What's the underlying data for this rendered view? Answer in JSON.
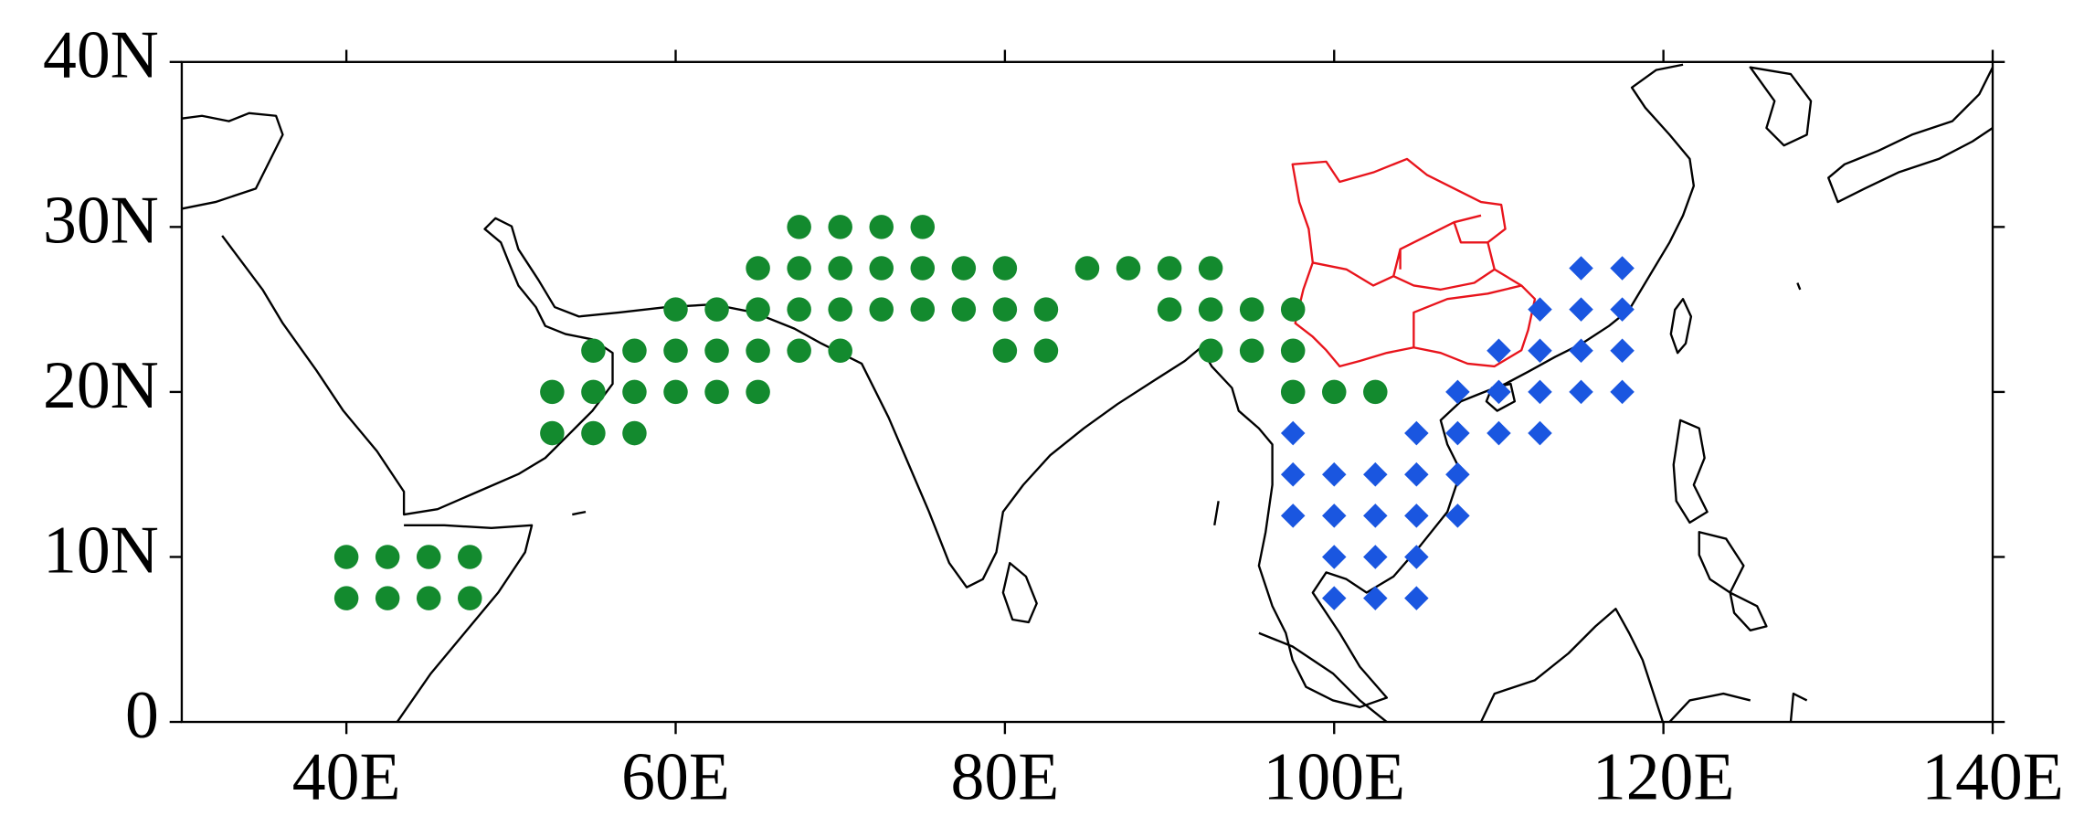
{
  "chart_data": {
    "type": "scatter",
    "xlim": [
      30,
      140
    ],
    "ylim": [
      0,
      40
    ],
    "xticks": [
      {
        "value": 40,
        "label": "40E"
      },
      {
        "value": 60,
        "label": "60E"
      },
      {
        "value": 80,
        "label": "80E"
      },
      {
        "value": 100,
        "label": "100E"
      },
      {
        "value": 120,
        "label": "120E"
      },
      {
        "value": 140,
        "label": "140E"
      }
    ],
    "yticks": [
      0,
      {
        "value": 10,
        "label": "10N"
      },
      {
        "value": 20,
        "label": "20N"
      },
      {
        "value": 30,
        "label": "30N"
      },
      {
        "value": 40,
        "label": "40N"
      }
    ],
    "series": [
      {
        "color": "#138a2e",
        "marker": "circle",
        "x": [
          67.5,
          70,
          72.5,
          75,
          65,
          67.5,
          70,
          72.5,
          75,
          77.5,
          80,
          85,
          87.5,
          90,
          92.5,
          60,
          62.5,
          65,
          67.5,
          70,
          72.5,
          75,
          77.5,
          80,
          82.5,
          90,
          92.5,
          95,
          97.5,
          55,
          57.5,
          60,
          62.5,
          65,
          67.5,
          70,
          80,
          82.5,
          92.5,
          95,
          97.5,
          52.5,
          55,
          57.5,
          60,
          62.5,
          65,
          97.5,
          100,
          102.5,
          52.5,
          55,
          57.5,
          40,
          42.5,
          45,
          47.5,
          40,
          42.5,
          45,
          47.5
        ],
        "y": [
          30,
          30,
          30,
          30,
          27.5,
          27.5,
          27.5,
          27.5,
          27.5,
          27.5,
          27.5,
          27.5,
          27.5,
          27.5,
          27.5,
          25,
          25,
          25,
          25,
          25,
          25,
          25,
          25,
          25,
          25,
          25,
          25,
          25,
          25,
          22.5,
          22.5,
          22.5,
          22.5,
          22.5,
          22.5,
          22.5,
          22.5,
          22.5,
          22.5,
          22.5,
          22.5,
          20,
          20,
          20,
          20,
          20,
          20,
          20,
          20,
          20,
          17.5,
          17.5,
          17.5,
          10,
          10,
          10,
          10,
          7.5,
          7.5,
          7.5,
          7.5
        ]
      },
      {
        "color": "#1a56e0",
        "marker": "diamond",
        "x": [
          115,
          117.5,
          112.5,
          115,
          117.5,
          110,
          112.5,
          115,
          117.5,
          107.5,
          110,
          112.5,
          115,
          117.5,
          97.5,
          105,
          107.5,
          110,
          112.5,
          97.5,
          100,
          102.5,
          105,
          107.5,
          97.5,
          100,
          102.5,
          105,
          107.5,
          100,
          102.5,
          105,
          100,
          102.5,
          105
        ],
        "y": [
          27.5,
          27.5,
          25,
          25,
          25,
          22.5,
          22.5,
          22.5,
          22.5,
          20,
          20,
          20,
          20,
          20,
          17.5,
          17.5,
          17.5,
          17.5,
          17.5,
          15,
          15,
          15,
          15,
          15,
          12.5,
          12.5,
          12.5,
          12.5,
          12.5,
          10,
          10,
          10,
          7.5,
          7.5,
          7.5
        ]
      }
    ]
  }
}
